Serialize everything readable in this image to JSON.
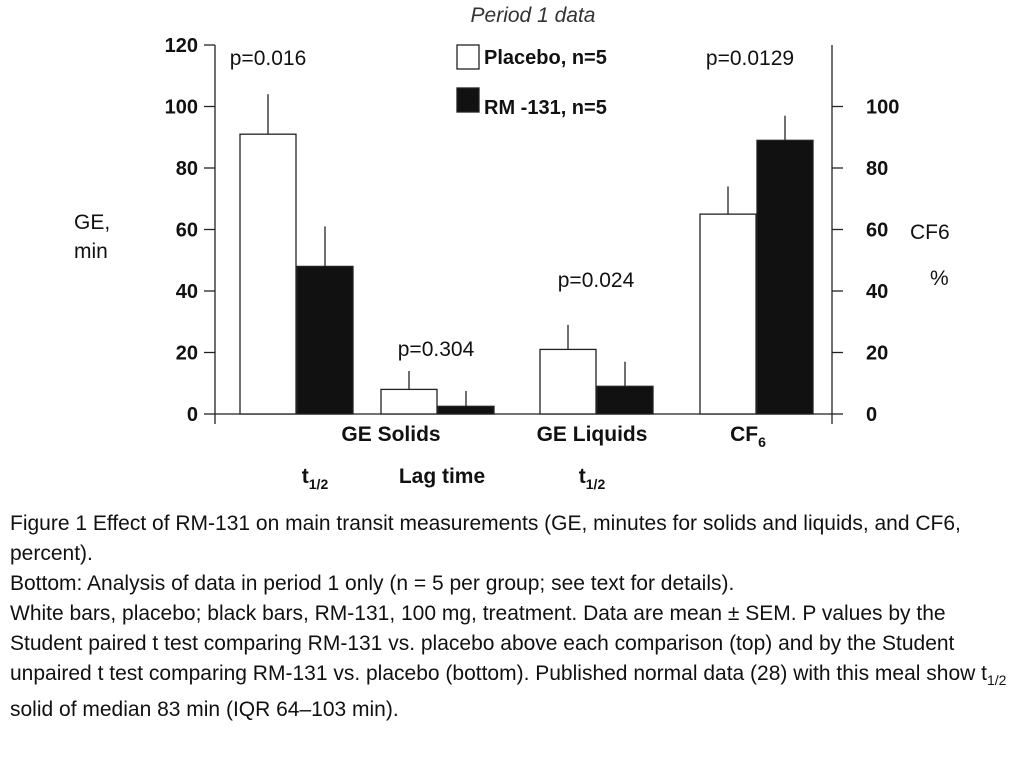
{
  "chart_data": {
    "type": "bar",
    "title": "Period 1 data",
    "left_axis": {
      "label_lines": [
        "GE,",
        "min"
      ],
      "ylim": [
        0,
        120
      ],
      "ticks": [
        0,
        20,
        40,
        60,
        80,
        100,
        120
      ]
    },
    "right_axis": {
      "label_lines": [
        "CF6",
        "%"
      ],
      "ylim": [
        0,
        120
      ],
      "ticks": [
        0,
        20,
        40,
        60,
        80,
        100
      ]
    },
    "groups": [
      {
        "label": "t",
        "label_sub": "1/2",
        "axis": "left",
        "p_value": "p=0.016"
      },
      {
        "label": "GE Solids",
        "label_line2": "Lag time",
        "axis": "left",
        "p_value": "p=0.304"
      },
      {
        "label": "GE Liquids",
        "label_line2": "t",
        "label_line2_sub": "1/2",
        "axis": "left",
        "p_value": "p=0.024"
      },
      {
        "label": "CF",
        "label_sub": "6",
        "axis": "right",
        "p_value": "p=0.0129"
      }
    ],
    "series": [
      {
        "name": "Placebo, n=5",
        "color": "#ffffff",
        "values": [
          91,
          8,
          21,
          65
        ],
        "sem": [
          13,
          6,
          8,
          9
        ]
      },
      {
        "name": "RM -131, n=5",
        "color": "#111111",
        "values": [
          48,
          2.5,
          9,
          89
        ],
        "sem": [
          13,
          5,
          8,
          8
        ]
      }
    ],
    "legend_position": "top-center",
    "grid": false
  },
  "caption": {
    "line1": "Figure 1   Effect of RM-131 on main transit measurements (GE, minutes for solids and liquids, and CF6, percent).",
    "line2": "Bottom: Analysis of data in period 1 only (n = 5 per group; see text for details).",
    "line3_a": "White bars, placebo; black bars, RM-131, 100 mg, treatment. Data are mean ± SEM. P values by the Student paired t test comparing RM-131 vs. placebo above each comparison (top) and by the Student unpaired t test comparing RM-131 vs. placebo (bottom). Published normal data (28) with this meal show t",
    "line3_sub": "1/2",
    "line3_b": " solid of median 83 min (IQR 64–103 min)."
  }
}
